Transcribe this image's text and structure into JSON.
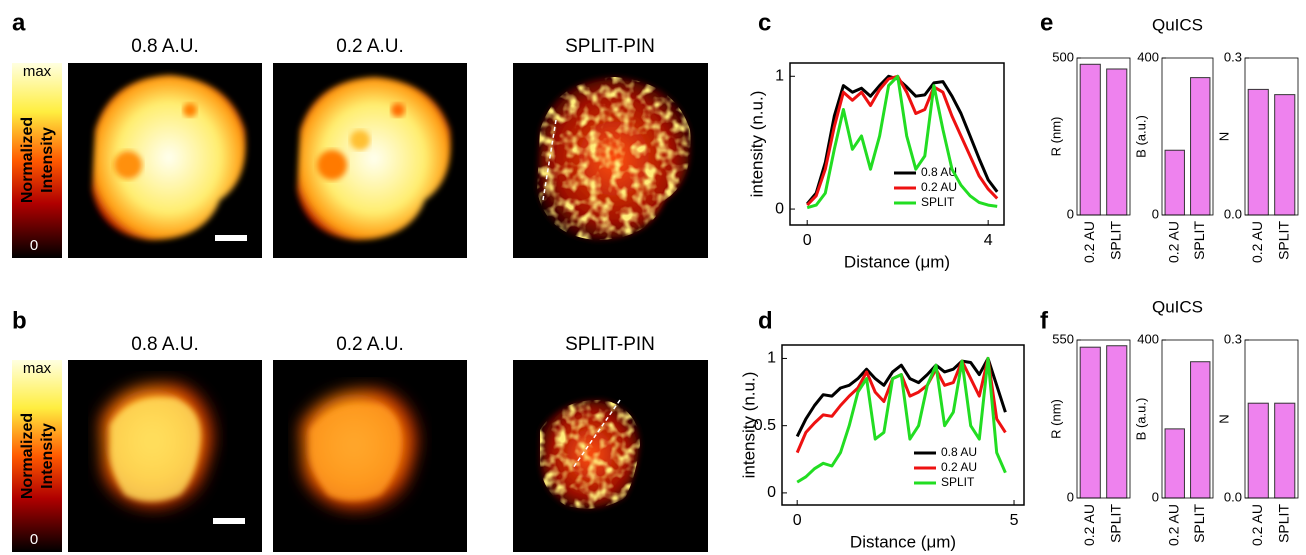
{
  "figure": {
    "panel_labels": [
      "a",
      "b",
      "c",
      "d",
      "e",
      "f"
    ],
    "image_titles_a": [
      "0.8 A.U.",
      "0.2 A.U.",
      "SPLIT-PIN"
    ],
    "image_titles_b": [
      "0.8 A.U.",
      "0.2 A.U.",
      "SPLIT-PIN"
    ],
    "colorbar": {
      "max_label": "max",
      "min_label": "0",
      "label_line1": "Normalized",
      "label_line2": "Intensity"
    }
  },
  "chart_data": [
    {
      "type": "line",
      "x_label": "Distance (μm)",
      "y_label": "intensity (n.u.)",
      "x": [
        0,
        0.2,
        0.4,
        0.6,
        0.8,
        1.0,
        1.2,
        1.4,
        1.6,
        1.8,
        2.0,
        2.2,
        2.4,
        2.6,
        2.8,
        3.0,
        3.2,
        3.4,
        3.6,
        3.8,
        4.0,
        4.2
      ],
      "xlim": [
        -0.38,
        4.35
      ],
      "xticks": [
        0,
        4
      ],
      "ylim": [
        -0.12,
        1.1
      ],
      "yticks": [
        0,
        1
      ],
      "series": [
        {
          "name": "0.8 AU",
          "color": "#000000",
          "values": [
            0.04,
            0.12,
            0.35,
            0.7,
            0.93,
            0.88,
            0.91,
            0.85,
            0.93,
            1.0,
            0.98,
            0.92,
            0.85,
            0.86,
            0.95,
            0.96,
            0.85,
            0.72,
            0.55,
            0.38,
            0.22,
            0.13
          ]
        },
        {
          "name": "0.2 AU",
          "color": "#ee1111",
          "values": [
            0.03,
            0.1,
            0.3,
            0.62,
            0.88,
            0.82,
            0.88,
            0.78,
            0.9,
            0.98,
            1.0,
            0.88,
            0.72,
            0.75,
            0.92,
            0.88,
            0.7,
            0.55,
            0.4,
            0.25,
            0.15,
            0.08
          ]
        },
        {
          "name": "SPLIT",
          "color": "#22dd22",
          "values": [
            0.01,
            0.03,
            0.12,
            0.45,
            0.75,
            0.45,
            0.55,
            0.3,
            0.55,
            0.93,
            1.0,
            0.55,
            0.3,
            0.4,
            0.93,
            0.6,
            0.3,
            0.18,
            0.1,
            0.05,
            0.03,
            0.02
          ]
        }
      ]
    },
    {
      "type": "line",
      "x_label": "Distance (μm)",
      "y_label": "intensity (n.u.)",
      "x": [
        0,
        0.2,
        0.4,
        0.6,
        0.8,
        1.0,
        1.2,
        1.4,
        1.6,
        1.8,
        2.0,
        2.2,
        2.4,
        2.6,
        2.8,
        3.0,
        3.2,
        3.4,
        3.6,
        3.8,
        4.0,
        4.2,
        4.4,
        4.6,
        4.8
      ],
      "xlim": [
        -0.35,
        5.23
      ],
      "xticks": [
        0,
        5
      ],
      "ylim": [
        -0.09,
        1.1
      ],
      "yticks": [
        0,
        0.5,
        1
      ],
      "series": [
        {
          "name": "0.8 AU",
          "color": "#000000",
          "values": [
            0.42,
            0.55,
            0.65,
            0.73,
            0.72,
            0.78,
            0.8,
            0.85,
            0.92,
            0.85,
            0.8,
            0.9,
            0.95,
            0.85,
            0.82,
            0.88,
            0.95,
            0.9,
            0.92,
            0.98,
            0.97,
            0.88,
            1.0,
            0.8,
            0.6
          ]
        },
        {
          "name": "0.2 AU",
          "color": "#ee1111",
          "values": [
            0.3,
            0.45,
            0.52,
            0.58,
            0.57,
            0.65,
            0.72,
            0.78,
            0.9,
            0.75,
            0.68,
            0.85,
            0.88,
            0.72,
            0.75,
            0.8,
            0.92,
            0.8,
            0.82,
            0.98,
            0.85,
            0.72,
            1.0,
            0.55,
            0.45
          ]
        },
        {
          "name": "SPLIT",
          "color": "#22dd22",
          "values": [
            0.08,
            0.12,
            0.18,
            0.22,
            0.2,
            0.3,
            0.5,
            0.75,
            0.85,
            0.4,
            0.45,
            0.85,
            0.88,
            0.4,
            0.5,
            0.8,
            0.95,
            0.5,
            0.6,
            0.98,
            0.5,
            0.4,
            1.0,
            0.3,
            0.15
          ]
        }
      ]
    },
    {
      "type": "bar",
      "y_label": "R (nm)",
      "categories": [
        "0.2 AU",
        "SPLIT"
      ],
      "values": [
        480,
        465
      ],
      "color": "#ee82ee",
      "ylim": [
        0,
        500
      ],
      "yticks": [
        0,
        500
      ]
    },
    {
      "type": "bar",
      "title": "QuICS",
      "y_label": "B (a.u.)",
      "categories": [
        "0.2 AU",
        "SPLIT"
      ],
      "values": [
        165,
        350
      ],
      "color": "#ee82ee",
      "ylim": [
        0,
        400
      ],
      "yticks": [
        0,
        400
      ]
    },
    {
      "type": "bar",
      "y_label": "N",
      "categories": [
        "0.2 AU",
        "SPLIT"
      ],
      "values": [
        0.24,
        0.23
      ],
      "color": "#ee82ee",
      "ylim": [
        0,
        0.3
      ],
      "yticks": [
        {
          "value": 0,
          "label": "0.0"
        },
        0.3
      ]
    },
    {
      "type": "bar",
      "y_label": "R (nm)",
      "categories": [
        "0.2 AU",
        "SPLIT"
      ],
      "values": [
        525,
        530
      ],
      "color": "#ee82ee",
      "ylim": [
        0,
        550
      ],
      "yticks": [
        0,
        550
      ]
    },
    {
      "type": "bar",
      "title": "QuICS",
      "y_label": "B (a.u.)",
      "categories": [
        "0.2 AU",
        "SPLIT"
      ],
      "values": [
        175,
        345
      ],
      "color": "#ee82ee",
      "ylim": [
        0,
        400
      ],
      "yticks": [
        0,
        400
      ]
    },
    {
      "type": "bar",
      "y_label": "N",
      "categories": [
        "0.2 AU",
        "SPLIT"
      ],
      "values": [
        0.18,
        0.18
      ],
      "color": "#ee82ee",
      "ylim": [
        0,
        0.3
      ],
      "yticks": [
        {
          "value": 0,
          "label": "0.0"
        },
        0.3
      ]
    }
  ]
}
